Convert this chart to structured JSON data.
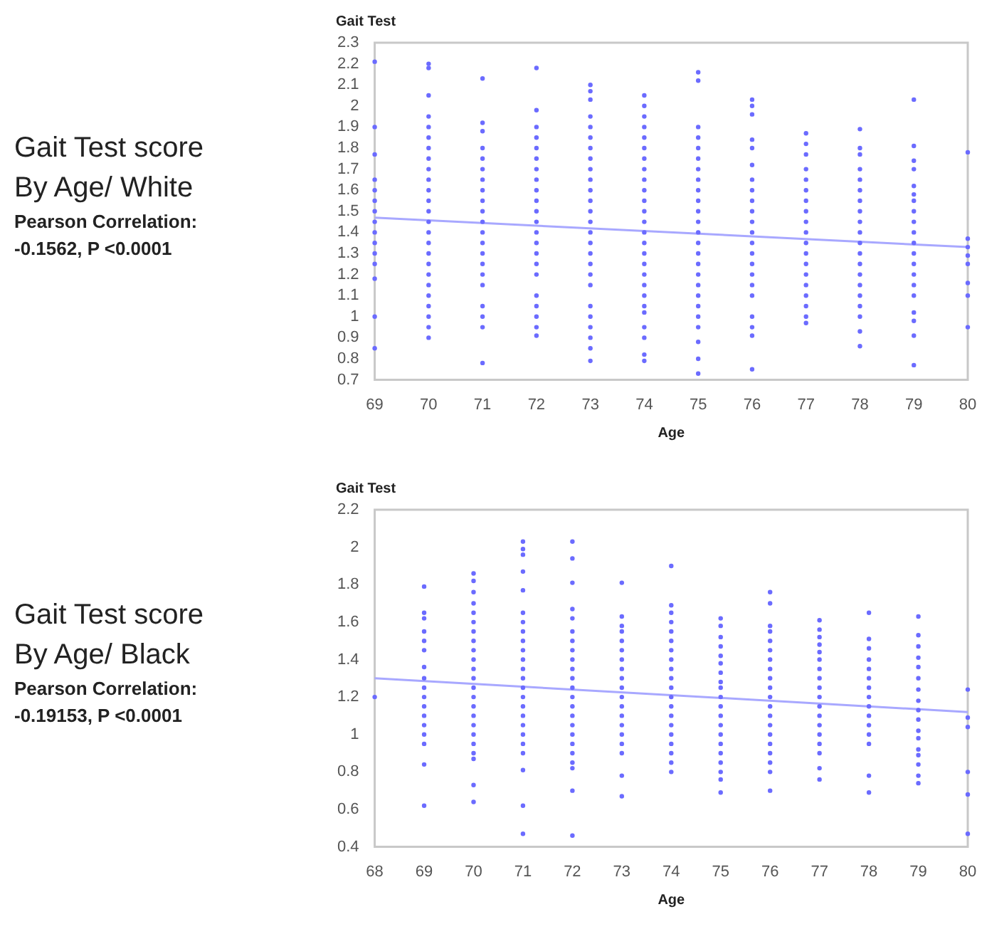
{
  "chart_data": [
    {
      "type": "scatter",
      "title": "Gait Test score",
      "subtitle": "By Age/ White",
      "annotations": [
        "Pearson Correlation:",
        "-0.1562, P <0.0001"
      ],
      "xlabel": "Age",
      "ylabel": "Gait Test",
      "xlim": [
        69,
        80
      ],
      "xticks": [
        69,
        70,
        71,
        72,
        73,
        74,
        75,
        76,
        77,
        78,
        79,
        80
      ],
      "ylim": [
        0.7,
        2.3
      ],
      "yticks": [
        0.7,
        0.8,
        0.9,
        1,
        1.1,
        1.2,
        1.3,
        1.4,
        1.5,
        1.6,
        1.7,
        1.8,
        1.9,
        2,
        2.1,
        2.2,
        2.3
      ],
      "grid": false,
      "legend": false,
      "marker": "circle",
      "series": [
        {
          "color": "#6b6bff",
          "x": [
            69,
            69,
            69,
            69,
            69,
            69,
            69,
            69,
            69,
            69,
            69,
            69,
            69,
            69,
            69
          ],
          "values": [
            2.21,
            1.9,
            1.77,
            1.65,
            1.6,
            1.55,
            1.5,
            1.45,
            1.4,
            1.35,
            1.3,
            1.25,
            1.18,
            1.0,
            0.85
          ]
        },
        {
          "color": "#6b6bff",
          "x": [
            70,
            70,
            70,
            70,
            70,
            70,
            70,
            70,
            70,
            70,
            70,
            70,
            70,
            70,
            70,
            70,
            70,
            70,
            70,
            70,
            70,
            70,
            70,
            70,
            70
          ],
          "values": [
            2.2,
            2.18,
            2.05,
            1.95,
            1.9,
            1.85,
            1.8,
            1.75,
            1.7,
            1.65,
            1.6,
            1.55,
            1.5,
            1.45,
            1.4,
            1.35,
            1.3,
            1.25,
            1.2,
            1.15,
            1.1,
            1.05,
            1.0,
            0.95,
            0.9
          ]
        },
        {
          "color": "#6b6bff",
          "x": [
            71,
            71,
            71,
            71,
            71,
            71,
            71,
            71,
            71,
            71,
            71,
            71,
            71,
            71,
            71,
            71,
            71,
            71,
            71,
            71,
            71
          ],
          "values": [
            2.13,
            1.92,
            1.88,
            1.8,
            1.75,
            1.7,
            1.65,
            1.6,
            1.55,
            1.5,
            1.45,
            1.4,
            1.35,
            1.3,
            1.25,
            1.2,
            1.15,
            1.05,
            1.0,
            0.95,
            0.78
          ]
        },
        {
          "color": "#6b6bff",
          "x": [
            72,
            72,
            72,
            72,
            72,
            72,
            72,
            72,
            72,
            72,
            72,
            72,
            72,
            72,
            72,
            72,
            72,
            72,
            72,
            72,
            72,
            72
          ],
          "values": [
            2.18,
            1.98,
            1.9,
            1.85,
            1.8,
            1.75,
            1.7,
            1.65,
            1.6,
            1.55,
            1.5,
            1.45,
            1.4,
            1.35,
            1.3,
            1.25,
            1.2,
            1.1,
            1.05,
            1.0,
            0.95,
            0.91
          ]
        },
        {
          "color": "#6b6bff",
          "x": [
            73,
            73,
            73,
            73,
            73,
            73,
            73,
            73,
            73,
            73,
            73,
            73,
            73,
            73,
            73,
            73,
            73,
            73,
            73,
            73,
            73,
            73,
            73,
            73,
            73,
            73
          ],
          "values": [
            2.1,
            2.07,
            2.03,
            1.95,
            1.9,
            1.85,
            1.8,
            1.75,
            1.7,
            1.65,
            1.6,
            1.55,
            1.5,
            1.45,
            1.4,
            1.35,
            1.3,
            1.25,
            1.2,
            1.15,
            1.05,
            1.0,
            0.95,
            0.9,
            0.85,
            0.79
          ]
        },
        {
          "color": "#6b6bff",
          "x": [
            74,
            74,
            74,
            74,
            74,
            74,
            74,
            74,
            74,
            74,
            74,
            74,
            74,
            74,
            74,
            74,
            74,
            74,
            74,
            74,
            74,
            74,
            74,
            74,
            74,
            74
          ],
          "values": [
            2.05,
            2.0,
            1.95,
            1.9,
            1.85,
            1.8,
            1.75,
            1.7,
            1.65,
            1.6,
            1.55,
            1.5,
            1.45,
            1.4,
            1.35,
            1.3,
            1.25,
            1.2,
            1.15,
            1.1,
            1.05,
            1.02,
            0.95,
            0.9,
            0.82,
            0.79
          ]
        },
        {
          "color": "#6b6bff",
          "x": [
            75,
            75,
            75,
            75,
            75,
            75,
            75,
            75,
            75,
            75,
            75,
            75,
            75,
            75,
            75,
            75,
            75,
            75,
            75,
            75,
            75,
            75,
            75,
            75,
            75
          ],
          "values": [
            2.16,
            2.12,
            1.9,
            1.85,
            1.8,
            1.75,
            1.7,
            1.65,
            1.6,
            1.55,
            1.5,
            1.45,
            1.4,
            1.35,
            1.3,
            1.25,
            1.2,
            1.15,
            1.1,
            1.05,
            1.0,
            0.95,
            0.88,
            0.8,
            0.73
          ]
        },
        {
          "color": "#6b6bff",
          "x": [
            76,
            76,
            76,
            76,
            76,
            76,
            76,
            76,
            76,
            76,
            76,
            76,
            76,
            76,
            76,
            76,
            76,
            76,
            76,
            76,
            76,
            76
          ],
          "values": [
            2.03,
            2.0,
            1.96,
            1.84,
            1.8,
            1.72,
            1.65,
            1.6,
            1.55,
            1.5,
            1.45,
            1.4,
            1.35,
            1.3,
            1.25,
            1.2,
            1.15,
            1.1,
            1.0,
            0.95,
            0.91,
            0.75
          ]
        },
        {
          "color": "#6b6bff",
          "x": [
            77,
            77,
            77,
            77,
            77,
            77,
            77,
            77,
            77,
            77,
            77,
            77,
            77,
            77,
            77,
            77,
            77,
            77,
            77
          ],
          "values": [
            1.87,
            1.82,
            1.77,
            1.7,
            1.65,
            1.6,
            1.55,
            1.5,
            1.45,
            1.4,
            1.35,
            1.3,
            1.25,
            1.2,
            1.15,
            1.1,
            1.05,
            1.0,
            0.97
          ]
        },
        {
          "color": "#6b6bff",
          "x": [
            78,
            78,
            78,
            78,
            78,
            78,
            78,
            78,
            78,
            78,
            78,
            78,
            78,
            78,
            78,
            78,
            78,
            78,
            78,
            78
          ],
          "values": [
            1.89,
            1.8,
            1.77,
            1.7,
            1.65,
            1.6,
            1.55,
            1.5,
            1.45,
            1.4,
            1.35,
            1.3,
            1.25,
            1.2,
            1.15,
            1.1,
            1.05,
            1.0,
            0.93,
            0.86
          ]
        },
        {
          "color": "#6b6bff",
          "x": [
            79,
            79,
            79,
            79,
            79,
            79,
            79,
            79,
            79,
            79,
            79,
            79,
            79,
            79,
            79,
            79,
            79,
            79,
            79,
            79
          ],
          "values": [
            2.03,
            1.81,
            1.74,
            1.7,
            1.62,
            1.58,
            1.55,
            1.5,
            1.45,
            1.4,
            1.35,
            1.3,
            1.25,
            1.2,
            1.15,
            1.1,
            1.02,
            0.98,
            0.91,
            0.77
          ]
        },
        {
          "color": "#6b6bff",
          "x": [
            80,
            80,
            80,
            80,
            80,
            80,
            80,
            80
          ],
          "values": [
            1.78,
            1.37,
            1.33,
            1.29,
            1.25,
            1.16,
            1.1,
            0.95
          ]
        },
        {
          "type": "line",
          "marker": "none",
          "color": "#a8a8ff",
          "x": [
            69,
            80
          ],
          "values": [
            1.47,
            1.33
          ]
        }
      ]
    },
    {
      "type": "scatter",
      "title": "Gait Test score",
      "subtitle": "By Age/ Black",
      "annotations": [
        "Pearson Correlation:",
        "-0.19153, P <0.0001"
      ],
      "xlabel": "Age",
      "ylabel": "Gait Test",
      "xlim": [
        68,
        80
      ],
      "xticks": [
        68,
        69,
        70,
        71,
        72,
        73,
        74,
        75,
        76,
        77,
        78,
        79,
        80
      ],
      "ylim": [
        0.4,
        2.2
      ],
      "yticks": [
        0.4,
        0.6,
        0.8,
        1,
        1.2,
        1.4,
        1.6,
        1.8,
        2,
        2.2
      ],
      "grid": false,
      "legend": false,
      "marker": "circle",
      "series": [
        {
          "color": "#6b6bff",
          "x": [
            68
          ],
          "values": [
            1.2
          ]
        },
        {
          "color": "#6b6bff",
          "x": [
            69,
            69,
            69,
            69,
            69,
            69,
            69,
            69,
            69,
            69,
            69,
            69,
            69,
            69,
            69,
            69,
            69
          ],
          "values": [
            1.79,
            1.65,
            1.62,
            1.55,
            1.5,
            1.45,
            1.36,
            1.3,
            1.25,
            1.2,
            1.15,
            1.1,
            1.05,
            1.0,
            0.95,
            0.84,
            0.62
          ]
        },
        {
          "color": "#6b6bff",
          "x": [
            70,
            70,
            70,
            70,
            70,
            70,
            70,
            70,
            70,
            70,
            70,
            70,
            70,
            70,
            70,
            70,
            70,
            70,
            70,
            70,
            70,
            70,
            70
          ],
          "values": [
            1.86,
            1.82,
            1.76,
            1.7,
            1.65,
            1.6,
            1.55,
            1.5,
            1.45,
            1.4,
            1.35,
            1.3,
            1.25,
            1.2,
            1.15,
            1.1,
            1.05,
            1.0,
            0.95,
            0.9,
            0.87,
            0.73,
            0.64
          ]
        },
        {
          "color": "#6b6bff",
          "x": [
            71,
            71,
            71,
            71,
            71,
            71,
            71,
            71,
            71,
            71,
            71,
            71,
            71,
            71,
            71,
            71,
            71,
            71,
            71,
            71,
            71,
            71,
            71,
            71
          ],
          "values": [
            2.03,
            1.99,
            1.96,
            1.87,
            1.77,
            1.65,
            1.6,
            1.55,
            1.5,
            1.45,
            1.4,
            1.35,
            1.3,
            1.25,
            1.2,
            1.15,
            1.1,
            1.05,
            1.0,
            0.95,
            0.9,
            0.81,
            0.62,
            0.47
          ]
        },
        {
          "color": "#6b6bff",
          "x": [
            72,
            72,
            72,
            72,
            72,
            72,
            72,
            72,
            72,
            72,
            72,
            72,
            72,
            72,
            72,
            72,
            72,
            72,
            72,
            72,
            72,
            72,
            72
          ],
          "values": [
            2.03,
            1.94,
            1.81,
            1.67,
            1.62,
            1.55,
            1.5,
            1.45,
            1.4,
            1.35,
            1.3,
            1.25,
            1.2,
            1.15,
            1.1,
            1.05,
            1.0,
            0.95,
            0.9,
            0.85,
            0.82,
            0.7,
            0.46
          ]
        },
        {
          "color": "#6b6bff",
          "x": [
            73,
            73,
            73,
            73,
            73,
            73,
            73,
            73,
            73,
            73,
            73,
            73,
            73,
            73,
            73,
            73,
            73,
            73,
            73
          ],
          "values": [
            1.81,
            1.63,
            1.58,
            1.55,
            1.5,
            1.45,
            1.4,
            1.35,
            1.3,
            1.25,
            1.2,
            1.15,
            1.1,
            1.05,
            1.0,
            0.95,
            0.9,
            0.78,
            0.67
          ]
        },
        {
          "color": "#6b6bff",
          "x": [
            74,
            74,
            74,
            74,
            74,
            74,
            74,
            74,
            74,
            74,
            74,
            74,
            74,
            74,
            74,
            74,
            74,
            74,
            74,
            74
          ],
          "values": [
            1.9,
            1.69,
            1.65,
            1.6,
            1.55,
            1.5,
            1.45,
            1.4,
            1.35,
            1.3,
            1.25,
            1.2,
            1.15,
            1.1,
            1.05,
            1.0,
            0.95,
            0.9,
            0.85,
            0.8
          ]
        },
        {
          "color": "#6b6bff",
          "x": [
            75,
            75,
            75,
            75,
            75,
            75,
            75,
            75,
            75,
            75,
            75,
            75,
            75,
            75,
            75,
            75,
            75,
            75,
            75,
            75
          ],
          "values": [
            1.62,
            1.58,
            1.52,
            1.47,
            1.42,
            1.38,
            1.33,
            1.28,
            1.25,
            1.2,
            1.15,
            1.1,
            1.05,
            1.0,
            0.95,
            0.9,
            0.85,
            0.8,
            0.76,
            0.69
          ]
        },
        {
          "color": "#6b6bff",
          "x": [
            76,
            76,
            76,
            76,
            76,
            76,
            76,
            76,
            76,
            76,
            76,
            76,
            76,
            76,
            76,
            76,
            76,
            76,
            76,
            76
          ],
          "values": [
            1.76,
            1.7,
            1.58,
            1.55,
            1.5,
            1.45,
            1.4,
            1.35,
            1.3,
            1.25,
            1.2,
            1.15,
            1.1,
            1.05,
            1.0,
            0.95,
            0.9,
            0.85,
            0.8,
            0.7
          ]
        },
        {
          "color": "#6b6bff",
          "x": [
            77,
            77,
            77,
            77,
            77,
            77,
            77,
            77,
            77,
            77,
            77,
            77,
            77,
            77,
            77,
            77,
            77,
            77
          ],
          "values": [
            1.61,
            1.56,
            1.52,
            1.48,
            1.44,
            1.4,
            1.35,
            1.3,
            1.25,
            1.2,
            1.15,
            1.1,
            1.05,
            1.0,
            0.95,
            0.9,
            0.82,
            0.76
          ]
        },
        {
          "color": "#6b6bff",
          "x": [
            78,
            78,
            78,
            78,
            78,
            78,
            78,
            78,
            78,
            78,
            78,
            78,
            78,
            78,
            78
          ],
          "values": [
            1.65,
            1.51,
            1.46,
            1.4,
            1.35,
            1.3,
            1.25,
            1.2,
            1.15,
            1.1,
            1.05,
            1.0,
            0.95,
            0.78,
            0.69
          ]
        },
        {
          "color": "#6b6bff",
          "x": [
            79,
            79,
            79,
            79,
            79,
            79,
            79,
            79,
            79,
            79,
            79,
            79,
            79,
            79,
            79,
            79,
            79
          ],
          "values": [
            1.63,
            1.53,
            1.47,
            1.41,
            1.36,
            1.3,
            1.24,
            1.18,
            1.13,
            1.08,
            1.02,
            0.98,
            0.92,
            0.89,
            0.84,
            0.78,
            0.74
          ]
        },
        {
          "color": "#6b6bff",
          "x": [
            80,
            80,
            80,
            80,
            80,
            80
          ],
          "values": [
            1.24,
            1.09,
            1.04,
            0.8,
            0.68,
            0.47
          ]
        },
        {
          "type": "line",
          "marker": "none",
          "color": "#a8a8ff",
          "x": [
            68,
            80
          ],
          "values": [
            1.3,
            1.12
          ]
        }
      ]
    }
  ]
}
